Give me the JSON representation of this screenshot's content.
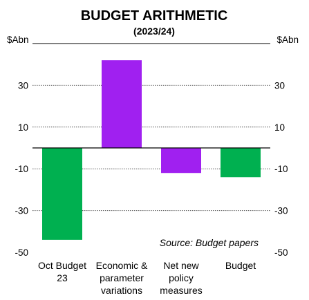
{
  "chart_data": {
    "type": "bar",
    "title": "BUDGET ARITHMETIC",
    "subtitle": "(2023/24)",
    "unit_left": "$Abn",
    "unit_right": "$Abn",
    "ylim": [
      -50,
      50
    ],
    "yticks": [
      -50,
      -30,
      -10,
      10,
      30
    ],
    "ytick_labels": [
      "-50",
      "-30",
      "-10",
      "10",
      "30"
    ],
    "grid": true,
    "categories": [
      [
        "Oct Budget",
        "23"
      ],
      [
        "Economic &",
        "parameter",
        "variations"
      ],
      [
        "Net new",
        "policy",
        "measures"
      ],
      [
        "Budget"
      ]
    ],
    "values": [
      -44,
      42,
      -12,
      -14
    ],
    "colors": [
      "#00B050",
      "#A020F0",
      "#A020F0",
      "#00B050"
    ],
    "source": "Source: Budget papers"
  }
}
